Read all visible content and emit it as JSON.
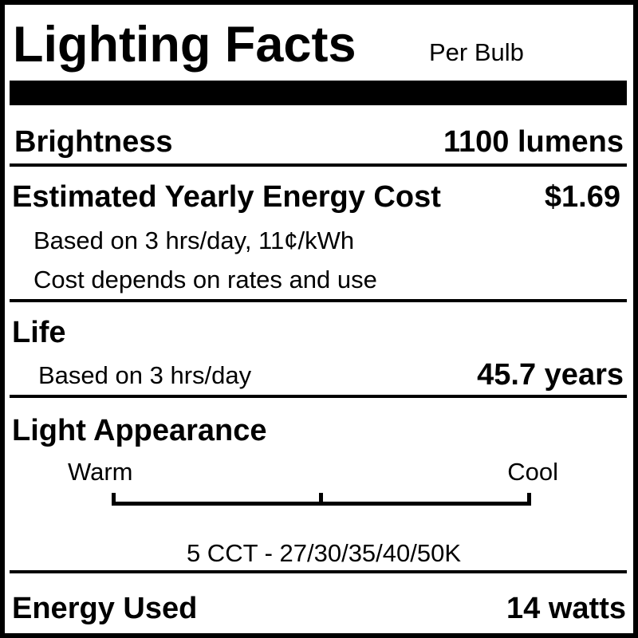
{
  "header": {
    "title": "Lighting Facts",
    "subtitle": "Per Bulb"
  },
  "brightness": {
    "label": "Brightness",
    "value": "1100 lumens"
  },
  "energy_cost": {
    "label": "Estimated Yearly Energy Cost",
    "value": "$1.69",
    "notes": [
      "Based on 3 hrs/day, 11¢/kWh",
      "Cost depends on rates and use"
    ]
  },
  "life": {
    "label": "Life",
    "note": "Based on 3 hrs/day",
    "value": "45.7 years"
  },
  "light_appearance": {
    "label": "Light Appearance",
    "scale_low": "Warm",
    "scale_high": "Cool",
    "note": "5 CCT - 27/30/35/40/50K"
  },
  "energy_used": {
    "label": "Energy Used",
    "value": "14 watts"
  }
}
